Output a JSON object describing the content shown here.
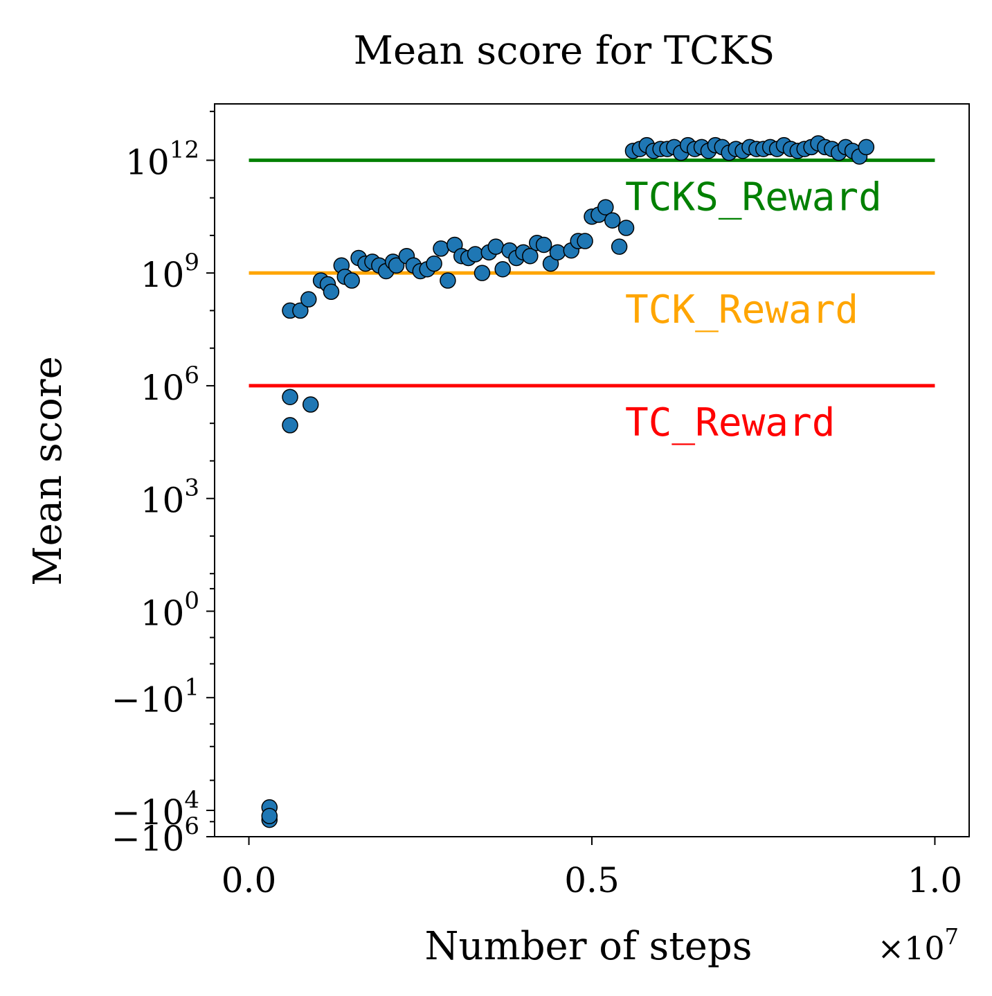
{
  "chart_data": {
    "type": "scatter",
    "title": "Mean score for TCKS",
    "xlabel": "Number of steps",
    "ylabel": "Mean score",
    "x_multiplier": "×10^7",
    "xlim": [
      -0.05,
      1.05
    ],
    "x_ticks": [
      0.0,
      0.5,
      1.0
    ],
    "x_tick_labels": [
      "0.0",
      "0.5",
      "1.0"
    ],
    "yscale": "symlog",
    "ylim_exponent": [
      -6,
      13.5
    ],
    "y_ticks": [
      {
        "exp": 12,
        "base": "10",
        "sup": "12"
      },
      {
        "exp": 9,
        "base": "10",
        "sup": "9"
      },
      {
        "exp": 6,
        "base": "10",
        "sup": "6"
      },
      {
        "exp": 3,
        "base": "10",
        "sup": "3"
      },
      {
        "exp": 0,
        "base": "10",
        "sup": "0"
      },
      {
        "exp": -2.3,
        "base": "−10",
        "sup": "1"
      },
      {
        "exp": -5.3,
        "base": "−10",
        "sup": "4"
      },
      {
        "exp": -6,
        "base": "−10",
        "sup": "6"
      }
    ],
    "reference_lines": [
      {
        "name": "TCKS_Reward",
        "label": "TCKS_Reward",
        "exp": 12,
        "color": "#008000"
      },
      {
        "name": "TCK_Reward",
        "label": "TCK_Reward",
        "exp": 9,
        "color": "#FFA500"
      },
      {
        "name": "TC_Reward",
        "label": "TC_Reward",
        "exp": 6,
        "color": "#FF0000"
      }
    ],
    "marker_color": "#1f77b4",
    "series": [
      {
        "name": "Mean score",
        "points": [
          [
            0.03,
            -5.22
          ],
          [
            0.03,
            -5.55
          ],
          [
            0.03,
            -5.45
          ],
          [
            0.06,
            8.0
          ],
          [
            0.06,
            5.7
          ],
          [
            0.06,
            4.95
          ],
          [
            0.075,
            8.0
          ],
          [
            0.09,
            5.5
          ],
          [
            0.087,
            8.3
          ],
          [
            0.105,
            8.8
          ],
          [
            0.115,
            8.7
          ],
          [
            0.12,
            8.5
          ],
          [
            0.135,
            9.2
          ],
          [
            0.14,
            8.9
          ],
          [
            0.15,
            8.8
          ],
          [
            0.16,
            9.4
          ],
          [
            0.17,
            9.25
          ],
          [
            0.18,
            9.3
          ],
          [
            0.19,
            9.2
          ],
          [
            0.2,
            9.05
          ],
          [
            0.21,
            9.3
          ],
          [
            0.215,
            9.2
          ],
          [
            0.23,
            9.45
          ],
          [
            0.24,
            9.2
          ],
          [
            0.25,
            9.05
          ],
          [
            0.26,
            9.1
          ],
          [
            0.27,
            9.25
          ],
          [
            0.28,
            9.65
          ],
          [
            0.29,
            8.8
          ],
          [
            0.3,
            9.75
          ],
          [
            0.31,
            9.45
          ],
          [
            0.32,
            9.4
          ],
          [
            0.33,
            9.5
          ],
          [
            0.34,
            9.0
          ],
          [
            0.35,
            9.55
          ],
          [
            0.36,
            9.7
          ],
          [
            0.37,
            9.1
          ],
          [
            0.38,
            9.6
          ],
          [
            0.39,
            9.4
          ],
          [
            0.4,
            9.55
          ],
          [
            0.41,
            9.45
          ],
          [
            0.42,
            9.8
          ],
          [
            0.43,
            9.75
          ],
          [
            0.44,
            9.25
          ],
          [
            0.45,
            9.55
          ],
          [
            0.47,
            9.6
          ],
          [
            0.48,
            9.85
          ],
          [
            0.49,
            9.85
          ],
          [
            0.5,
            10.5
          ],
          [
            0.51,
            10.55
          ],
          [
            0.52,
            10.75
          ],
          [
            0.53,
            10.4
          ],
          [
            0.54,
            9.7
          ],
          [
            0.55,
            10.2
          ],
          [
            0.56,
            12.25
          ],
          [
            0.57,
            12.3
          ],
          [
            0.58,
            12.4
          ],
          [
            0.59,
            12.25
          ],
          [
            0.6,
            12.3
          ],
          [
            0.61,
            12.3
          ],
          [
            0.62,
            12.35
          ],
          [
            0.63,
            12.2
          ],
          [
            0.64,
            12.4
          ],
          [
            0.65,
            12.3
          ],
          [
            0.66,
            12.35
          ],
          [
            0.67,
            12.25
          ],
          [
            0.68,
            12.4
          ],
          [
            0.69,
            12.35
          ],
          [
            0.7,
            12.2
          ],
          [
            0.71,
            12.3
          ],
          [
            0.72,
            12.25
          ],
          [
            0.73,
            12.35
          ],
          [
            0.74,
            12.3
          ],
          [
            0.75,
            12.3
          ],
          [
            0.76,
            12.35
          ],
          [
            0.77,
            12.3
          ],
          [
            0.78,
            12.4
          ],
          [
            0.79,
            12.3
          ],
          [
            0.8,
            12.25
          ],
          [
            0.81,
            12.3
          ],
          [
            0.82,
            12.35
          ],
          [
            0.83,
            12.45
          ],
          [
            0.84,
            12.35
          ],
          [
            0.85,
            12.3
          ],
          [
            0.86,
            12.2
          ],
          [
            0.87,
            12.35
          ],
          [
            0.88,
            12.25
          ],
          [
            0.89,
            12.1
          ],
          [
            0.9,
            12.35
          ]
        ]
      }
    ]
  }
}
